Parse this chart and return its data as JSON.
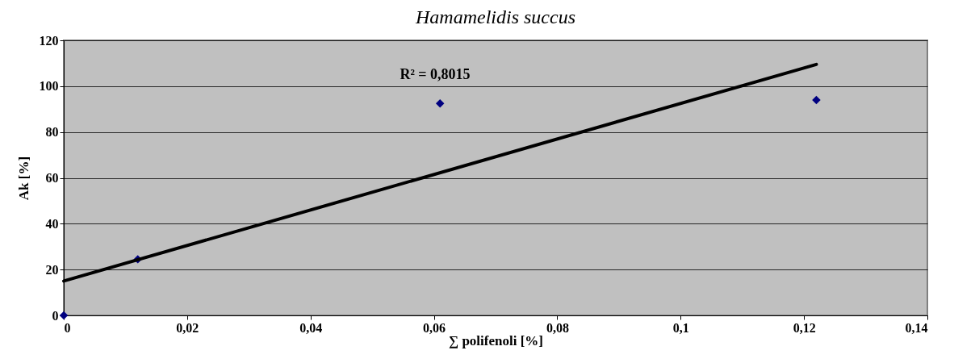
{
  "chart_data": {
    "type": "scatter",
    "title": "Hamamelidis succus",
    "xlabel": "∑ polifenoli [%]",
    "ylabel": "Ak [%]",
    "x": [
      0,
      0.012,
      0.061,
      0.122
    ],
    "series": [
      {
        "color": "#000080",
        "values": [
          0,
          24.5,
          92.5,
          94
        ],
        "marker": "diamond"
      },
      {
        "type": "line",
        "color": "#000000",
        "x": [
          0,
          0.122
        ],
        "values": [
          15,
          109.5
        ],
        "marker": "none",
        "line_style": "solid"
      }
    ],
    "annotations": [
      "R² = 0,8015"
    ],
    "xlim": [
      0,
      0.14
    ],
    "ylim": [
      0,
      120
    ],
    "xticks": [
      0,
      {
        "value": 0.02,
        "label": "0,02"
      },
      {
        "value": 0.04,
        "label": "0,04"
      },
      {
        "value": 0.06,
        "label": "0,06"
      },
      {
        "value": 0.08,
        "label": "0,08"
      },
      {
        "value": 0.1,
        "label": "0,1"
      },
      {
        "value": 0.12,
        "label": "0,12"
      },
      {
        "value": 0.14,
        "label": "0,14"
      }
    ],
    "yticks": [
      0,
      20,
      40,
      60,
      80,
      100,
      120
    ],
    "grid": "y"
  }
}
